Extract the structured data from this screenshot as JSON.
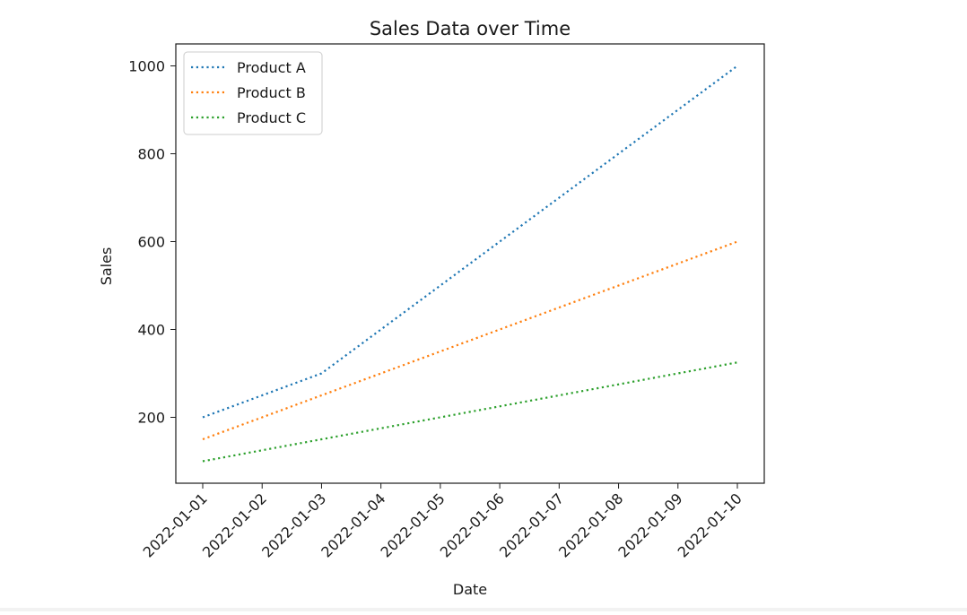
{
  "chart_data": {
    "type": "line",
    "title": "Sales Data over Time",
    "xlabel": "Date",
    "ylabel": "Sales",
    "x": [
      "2022-01-01",
      "2022-01-02",
      "2022-01-03",
      "2022-01-04",
      "2022-01-05",
      "2022-01-06",
      "2022-01-07",
      "2022-01-08",
      "2022-01-09",
      "2022-01-10"
    ],
    "ylim": [
      50,
      1050
    ],
    "yticks": [
      200,
      400,
      600,
      800,
      1000
    ],
    "grid": false,
    "legend_position": "top-left",
    "line_style": "dotted",
    "series": [
      {
        "name": "Product A",
        "color": "#1f77b4",
        "values": [
          200,
          250,
          300,
          400,
          500,
          600,
          700,
          800,
          900,
          1000
        ]
      },
      {
        "name": "Product B",
        "color": "#ff7f0e",
        "values": [
          150,
          200,
          250,
          300,
          350,
          400,
          450,
          500,
          550,
          600
        ]
      },
      {
        "name": "Product C",
        "color": "#2ca02c",
        "values": [
          100,
          125,
          150,
          175,
          200,
          225,
          250,
          275,
          300,
          325
        ]
      }
    ]
  }
}
